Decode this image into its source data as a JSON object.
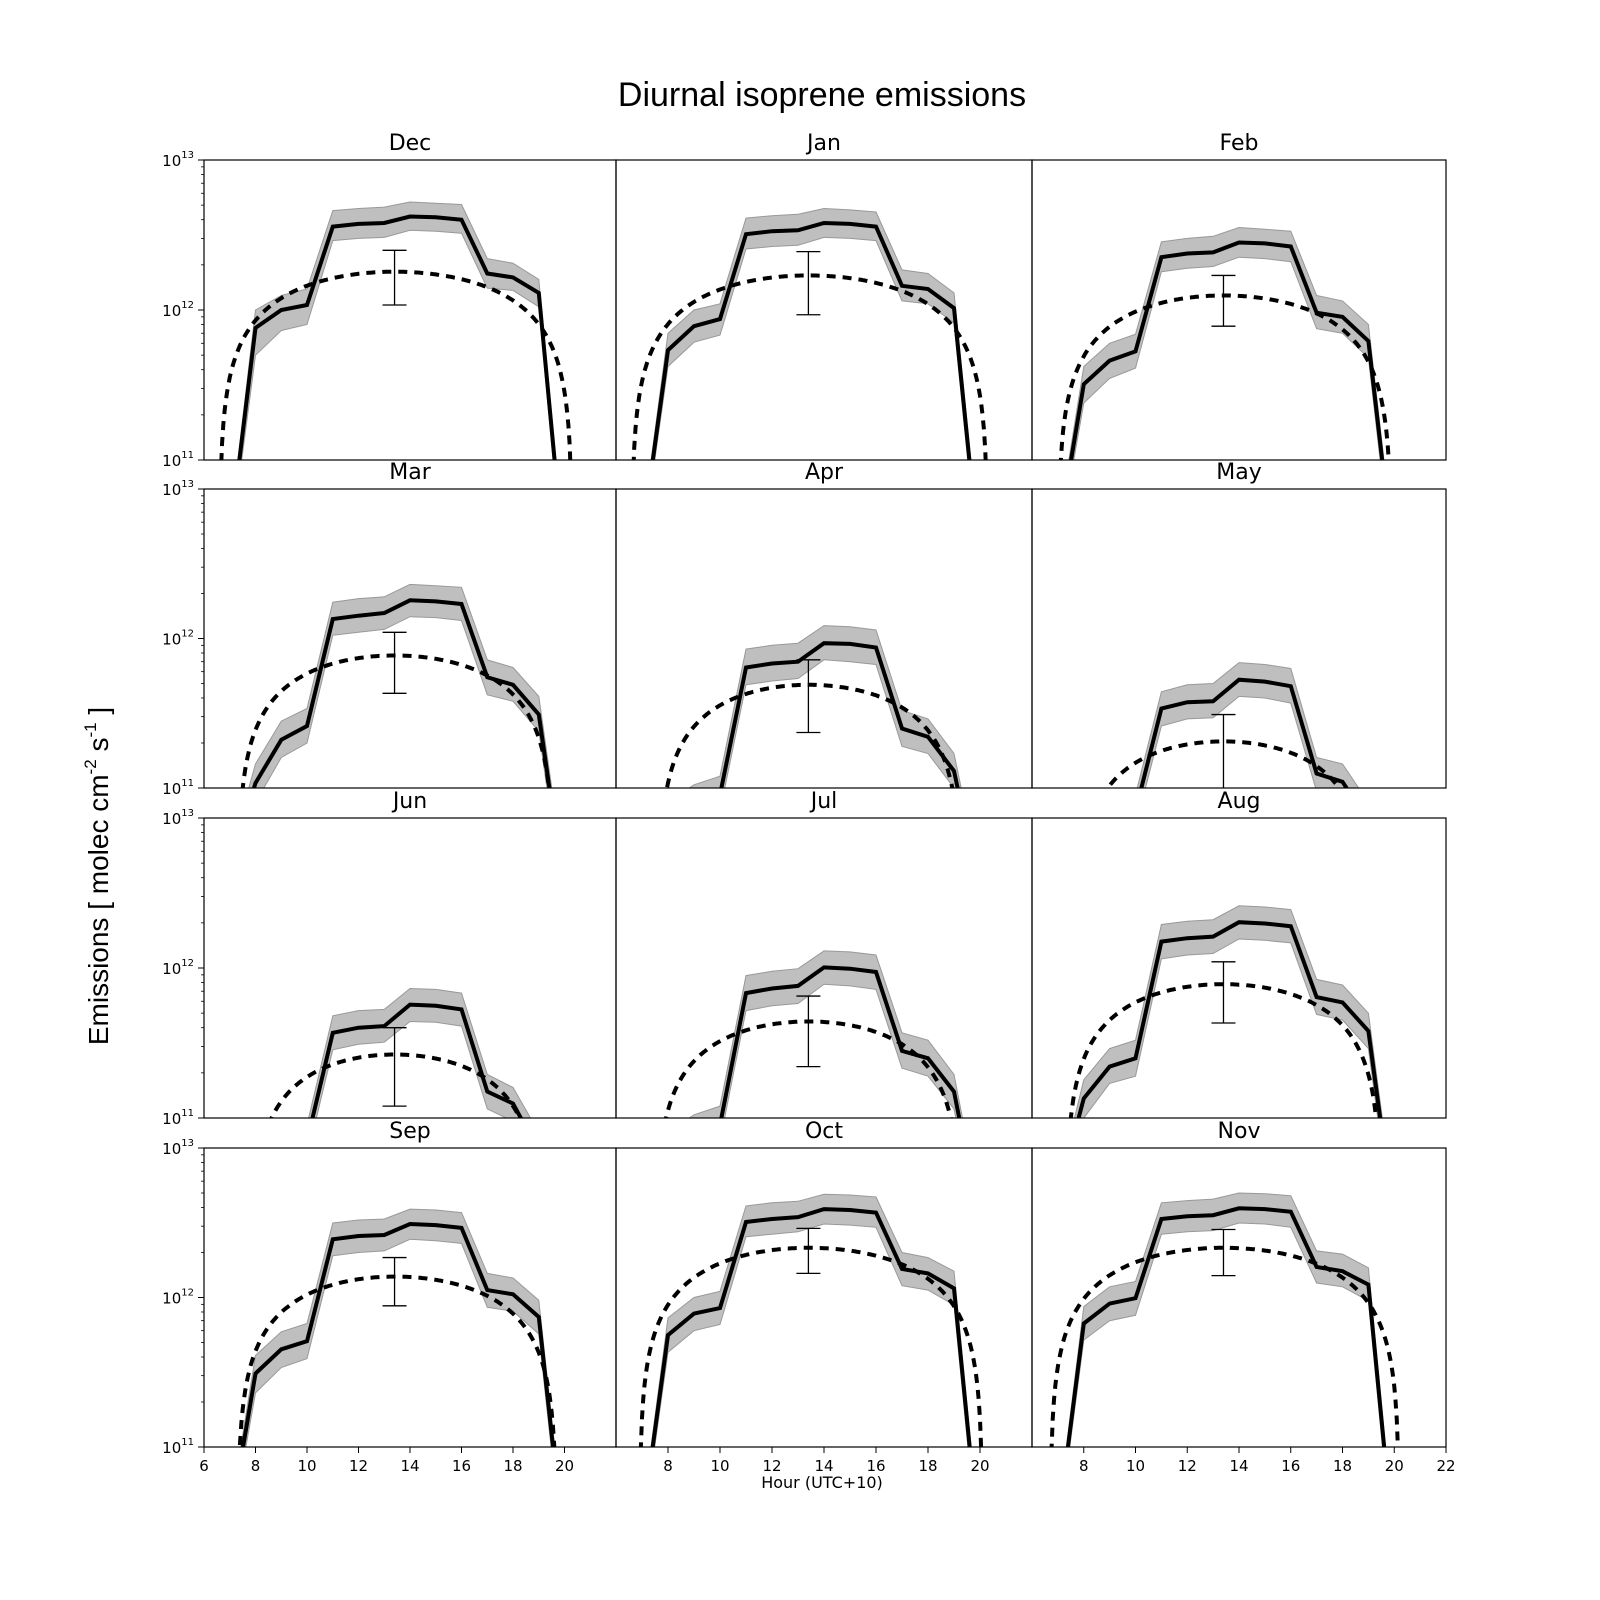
{
  "chart_data": {
    "type": "line",
    "title": "Diurnal isoprene emissions",
    "xlabel": "Hour (UTC+10)",
    "ylabel": {
      "text_parts": [
        "Emissions [ molec cm",
        "-2",
        " s",
        "-1",
        " ]"
      ]
    },
    "xlim": [
      6,
      22
    ],
    "ylim": [
      100000000000.0,
      10000000000000.0
    ],
    "yscale": "log",
    "x_ticks": [
      6,
      8,
      10,
      12,
      14,
      16,
      18,
      20,
      22
    ],
    "y_ticks": [
      {
        "base": "10",
        "exp": "11"
      },
      {
        "base": "10",
        "exp": "12"
      },
      {
        "base": "10",
        "exp": "13"
      }
    ],
    "grid": false,
    "legend": "none",
    "colors": {
      "model": "#000000",
      "band": "#bfbfbf",
      "band_edge": "#999999",
      "observed": "#000000"
    },
    "hours": [
      7,
      8,
      9,
      10,
      11,
      12,
      13,
      14,
      15,
      16,
      17,
      18,
      19,
      20
    ],
    "panels": [
      {
        "month": "Dec",
        "model": [
          30000000000.0,
          760000000000.0,
          1000000000000.0,
          1080000000000.0,
          3600000000000.0,
          3750000000000.0,
          3800000000000.0,
          4200000000000.0,
          4150000000000.0,
          4000000000000.0,
          1750000000000.0,
          1650000000000.0,
          1300000000000.0,
          20000000000.0
        ],
        "band_upper": [
          35000000000.0,
          1000000000000.0,
          1250000000000.0,
          1380000000000.0,
          4600000000000.0,
          4750000000000.0,
          4850000000000.0,
          5250000000000.0,
          5150000000000.0,
          5050000000000.0,
          2200000000000.0,
          2050000000000.0,
          1600000000000.0,
          25000000000.0
        ],
        "band_lower": [
          25000000000.0,
          500000000000.0,
          730000000000.0,
          800000000000.0,
          2900000000000.0,
          3000000000000.0,
          3050000000000.0,
          3400000000000.0,
          3350000000000.0,
          3250000000000.0,
          1400000000000.0,
          1350000000000.0,
          1050000000000.0,
          15000000000.0
        ],
        "curve": {
          "peak": 1800000000000.0,
          "center": 13.4,
          "sunrise": 6.6,
          "sunset": 20.3
        },
        "errorbar": {
          "x": 13.4,
          "low": 1080000000000.0,
          "high": 2500000000000.0
        }
      },
      {
        "month": "Jan",
        "model": [
          30000000000.0,
          540000000000.0,
          780000000000.0,
          870000000000.0,
          3200000000000.0,
          3350000000000.0,
          3400000000000.0,
          3800000000000.0,
          3750000000000.0,
          3600000000000.0,
          1450000000000.0,
          1380000000000.0,
          1030000000000.0,
          20000000000.0
        ],
        "band_upper": [
          35000000000.0,
          700000000000.0,
          1000000000000.0,
          1100000000000.0,
          4100000000000.0,
          4250000000000.0,
          4350000000000.0,
          4750000000000.0,
          4650000000000.0,
          4500000000000.0,
          1850000000000.0,
          1750000000000.0,
          1300000000000.0,
          25000000000.0
        ],
        "band_lower": [
          25000000000.0,
          420000000000.0,
          610000000000.0,
          680000000000.0,
          2550000000000.0,
          2650000000000.0,
          2700000000000.0,
          3050000000000.0,
          3000000000000.0,
          2900000000000.0,
          1150000000000.0,
          1100000000000.0,
          820000000000.0,
          15000000000.0
        ],
        "curve": {
          "peak": 1700000000000.0,
          "center": 13.4,
          "sunrise": 6.6,
          "sunset": 20.3
        },
        "errorbar": {
          "x": 13.4,
          "low": 930000000000.0,
          "high": 2450000000000.0
        }
      },
      {
        "month": "Feb",
        "model": [
          30000000000.0,
          320000000000.0,
          460000000000.0,
          530000000000.0,
          2250000000000.0,
          2380000000000.0,
          2420000000000.0,
          2820000000000.0,
          2780000000000.0,
          2650000000000.0,
          960000000000.0,
          900000000000.0,
          620000000000.0,
          20000000000.0
        ],
        "band_upper": [
          35000000000.0,
          420000000000.0,
          600000000000.0,
          690000000000.0,
          2850000000000.0,
          3000000000000.0,
          3100000000000.0,
          3550000000000.0,
          3450000000000.0,
          3350000000000.0,
          1250000000000.0,
          1150000000000.0,
          800000000000.0,
          25000000000.0
        ],
        "band_lower": [
          25000000000.0,
          240000000000.0,
          350000000000.0,
          410000000000.0,
          1800000000000.0,
          1900000000000.0,
          1950000000000.0,
          2250000000000.0,
          2200000000000.0,
          2100000000000.0,
          750000000000.0,
          700000000000.0,
          480000000000.0,
          15000000000.0
        ],
        "curve": {
          "peak": 1250000000000.0,
          "center": 13.4,
          "sunrise": 7.0,
          "sunset": 19.9
        },
        "errorbar": {
          "x": 13.4,
          "low": 780000000000.0,
          "high": 1700000000000.0
        }
      },
      {
        "month": "Mar",
        "model": [
          30000000000.0,
          108000000000.0,
          210000000000.0,
          260000000000.0,
          1350000000000.0,
          1420000000000.0,
          1480000000000.0,
          1800000000000.0,
          1770000000000.0,
          1700000000000.0,
          550000000000.0,
          490000000000.0,
          310000000000.0,
          20000000000.0
        ],
        "band_upper": [
          35000000000.0,
          145000000000.0,
          280000000000.0,
          340000000000.0,
          1750000000000.0,
          1850000000000.0,
          1900000000000.0,
          2300000000000.0,
          2250000000000.0,
          2200000000000.0,
          720000000000.0,
          640000000000.0,
          410000000000.0,
          25000000000.0
        ],
        "band_lower": [
          25000000000.0,
          80000000000.0,
          160000000000.0,
          200000000000.0,
          1050000000000.0,
          1100000000000.0,
          1150000000000.0,
          1400000000000.0,
          1380000000000.0,
          1320000000000.0,
          420000000000.0,
          380000000000.0,
          240000000000.0,
          15000000000.0
        ],
        "curve": {
          "peak": 770000000000.0,
          "center": 13.4,
          "sunrise": 7.3,
          "sunset": 19.6
        },
        "errorbar": {
          "x": 13.4,
          "low": 430000000000.0,
          "high": 1100000000000.0
        }
      },
      {
        "month": "Apr",
        "model": [
          30000000000.0,
          60000000000.0,
          80000000000.0,
          90000000000.0,
          640000000000.0,
          680000000000.0,
          700000000000.0,
          930000000000.0,
          920000000000.0,
          870000000000.0,
          250000000000.0,
          220000000000.0,
          130000000000.0,
          20000000000.0
        ],
        "band_upper": [
          35000000000.0,
          80000000000.0,
          105000000000.0,
          120000000000.0,
          850000000000.0,
          900000000000.0,
          930000000000.0,
          1220000000000.0,
          1200000000000.0,
          1140000000000.0,
          330000000000.0,
          290000000000.0,
          170000000000.0,
          25000000000.0
        ],
        "band_lower": [
          25000000000.0,
          45000000000.0,
          60000000000.0,
          70000000000.0,
          490000000000.0,
          520000000000.0,
          540000000000.0,
          720000000000.0,
          700000000000.0,
          670000000000.0,
          190000000000.0,
          170000000000.0,
          100000000000.0,
          15000000000.0
        ],
        "curve": {
          "peak": 490000000000.0,
          "center": 13.4,
          "sunrise": 7.6,
          "sunset": 19.3
        },
        "errorbar": {
          "x": 13.4,
          "low": 235000000000.0,
          "high": 720000000000.0
        }
      },
      {
        "month": "May",
        "model": [
          30000000000.0,
          40000000000.0,
          50000000000.0,
          70000000000.0,
          340000000000.0,
          375000000000.0,
          380000000000.0,
          530000000000.0,
          515000000000.0,
          480000000000.0,
          125000000000.0,
          110000000000.0,
          60000000000.0,
          20000000000.0
        ],
        "band_upper": [
          35000000000.0,
          50000000000.0,
          65000000000.0,
          90000000000.0,
          440000000000.0,
          490000000000.0,
          500000000000.0,
          690000000000.0,
          670000000000.0,
          630000000000.0,
          160000000000.0,
          145000000000.0,
          80000000000.0,
          25000000000.0
        ],
        "band_lower": [
          25000000000.0,
          30000000000.0,
          40000000000.0,
          55000000000.0,
          260000000000.0,
          290000000000.0,
          295000000000.0,
          410000000000.0,
          400000000000.0,
          370000000000.0,
          95000000000.0,
          85000000000.0,
          45000000000.0,
          15000000000.0
        ],
        "curve": {
          "peak": 205000000000.0,
          "center": 13.4,
          "sunrise": 7.7,
          "sunset": 19.1
        },
        "errorbar": {
          "x": 13.4,
          "low": 90000000000.0,
          "high": 310000000000.0
        }
      },
      {
        "month": "Jun",
        "model": [
          30000000000.0,
          40000000000.0,
          50000000000.0,
          70000000000.0,
          370000000000.0,
          400000000000.0,
          410000000000.0,
          570000000000.0,
          560000000000.0,
          530000000000.0,
          150000000000.0,
          125000000000.0,
          60000000000.0,
          20000000000.0
        ],
        "band_upper": [
          35000000000.0,
          50000000000.0,
          65000000000.0,
          90000000000.0,
          480000000000.0,
          520000000000.0,
          530000000000.0,
          730000000000.0,
          720000000000.0,
          680000000000.0,
          195000000000.0,
          160000000000.0,
          80000000000.0,
          25000000000.0
        ],
        "band_lower": [
          25000000000.0,
          30000000000.0,
          40000000000.0,
          55000000000.0,
          285000000000.0,
          310000000000.0,
          320000000000.0,
          440000000000.0,
          435000000000.0,
          410000000000.0,
          115000000000.0,
          95000000000.0,
          45000000000.0,
          15000000000.0
        ],
        "curve": {
          "peak": 265000000000.0,
          "center": 13.4,
          "sunrise": 7.8,
          "sunset": 19.1
        },
        "errorbar": {
          "x": 13.4,
          "low": 120000000000.0,
          "high": 400000000000.0
        }
      },
      {
        "month": "Jul",
        "model": [
          30000000000.0,
          60000000000.0,
          80000000000.0,
          90000000000.0,
          680000000000.0,
          730000000000.0,
          760000000000.0,
          1010000000000.0,
          990000000000.0,
          940000000000.0,
          280000000000.0,
          250000000000.0,
          150000000000.0,
          20000000000.0
        ],
        "band_upper": [
          35000000000.0,
          80000000000.0,
          105000000000.0,
          120000000000.0,
          890000000000.0,
          950000000000.0,
          990000000000.0,
          1300000000000.0,
          1280000000000.0,
          1220000000000.0,
          370000000000.0,
          330000000000.0,
          195000000000.0,
          25000000000.0
        ],
        "band_lower": [
          25000000000.0,
          45000000000.0,
          60000000000.0,
          70000000000.0,
          520000000000.0,
          560000000000.0,
          580000000000.0,
          780000000000.0,
          760000000000.0,
          720000000000.0,
          215000000000.0,
          190000000000.0,
          115000000000.0,
          15000000000.0
        ],
        "curve": {
          "peak": 440000000000.0,
          "center": 13.4,
          "sunrise": 7.5,
          "sunset": 19.3
        },
        "errorbar": {
          "x": 13.4,
          "low": 220000000000.0,
          "high": 650000000000.0
        }
      },
      {
        "month": "Aug",
        "model": [
          30000000000.0,
          135000000000.0,
          220000000000.0,
          250000000000.0,
          1500000000000.0,
          1580000000000.0,
          1620000000000.0,
          2020000000000.0,
          1980000000000.0,
          1900000000000.0,
          640000000000.0,
          590000000000.0,
          380000000000.0,
          20000000000.0
        ],
        "band_upper": [
          35000000000.0,
          180000000000.0,
          290000000000.0,
          330000000000.0,
          1950000000000.0,
          2050000000000.0,
          2100000000000.0,
          2600000000000.0,
          2550000000000.0,
          2450000000000.0,
          840000000000.0,
          770000000000.0,
          500000000000.0,
          25000000000.0
        ],
        "band_lower": [
          25000000000.0,
          100000000000.0,
          170000000000.0,
          190000000000.0,
          1150000000000.0,
          1220000000000.0,
          1250000000000.0,
          1560000000000.0,
          1530000000000.0,
          1470000000000.0,
          490000000000.0,
          450000000000.0,
          290000000000.0,
          15000000000.0
        ],
        "curve": {
          "peak": 780000000000.0,
          "center": 13.4,
          "sunrise": 7.3,
          "sunset": 19.5
        },
        "errorbar": {
          "x": 13.4,
          "low": 430000000000.0,
          "high": 1100000000000.0
        }
      },
      {
        "month": "Sep",
        "model": [
          30000000000.0,
          310000000000.0,
          450000000000.0,
          510000000000.0,
          2450000000000.0,
          2580000000000.0,
          2620000000000.0,
          3100000000000.0,
          3050000000000.0,
          2920000000000.0,
          1120000000000.0,
          1050000000000.0,
          740000000000.0,
          20000000000.0
        ],
        "band_upper": [
          35000000000.0,
          410000000000.0,
          590000000000.0,
          670000000000.0,
          3150000000000.0,
          3300000000000.0,
          3350000000000.0,
          3900000000000.0,
          3850000000000.0,
          3700000000000.0,
          1450000000000.0,
          1350000000000.0,
          960000000000.0,
          25000000000.0
        ],
        "band_lower": [
          25000000000.0,
          230000000000.0,
          340000000000.0,
          390000000000.0,
          1900000000000.0,
          2000000000000.0,
          2050000000000.0,
          2450000000000.0,
          2400000000000.0,
          2300000000000.0,
          860000000000.0,
          810000000000.0,
          570000000000.0,
          15000000000.0
        ],
        "curve": {
          "peak": 1380000000000.0,
          "center": 13.4,
          "sunrise": 7.3,
          "sunset": 19.7
        },
        "errorbar": {
          "x": 13.4,
          "low": 880000000000.0,
          "high": 1850000000000.0
        }
      },
      {
        "month": "Oct",
        "model": [
          30000000000.0,
          560000000000.0,
          780000000000.0,
          850000000000.0,
          3200000000000.0,
          3350000000000.0,
          3450000000000.0,
          3900000000000.0,
          3850000000000.0,
          3700000000000.0,
          1550000000000.0,
          1450000000000.0,
          1150000000000.0,
          20000000000.0
        ],
        "band_upper": [
          35000000000.0,
          730000000000.0,
          1000000000000.0,
          1100000000000.0,
          4100000000000.0,
          4300000000000.0,
          4400000000000.0,
          4900000000000.0,
          4850000000000.0,
          4700000000000.0,
          2000000000000.0,
          1850000000000.0,
          1500000000000.0,
          25000000000.0
        ],
        "band_lower": [
          25000000000.0,
          430000000000.0,
          600000000000.0,
          660000000000.0,
          2550000000000.0,
          2650000000000.0,
          2750000000000.0,
          3100000000000.0,
          3050000000000.0,
          2950000000000.0,
          1200000000000.0,
          1120000000000.0,
          890000000000.0,
          15000000000.0
        ],
        "curve": {
          "peak": 2150000000000.0,
          "center": 13.4,
          "sunrise": 6.9,
          "sunset": 20.1
        },
        "errorbar": {
          "x": 13.4,
          "low": 1450000000000.0,
          "high": 2900000000000.0
        }
      },
      {
        "month": "Nov",
        "model": [
          30000000000.0,
          670000000000.0,
          910000000000.0,
          990000000000.0,
          3350000000000.0,
          3500000000000.0,
          3550000000000.0,
          3950000000000.0,
          3900000000000.0,
          3750000000000.0,
          1600000000000.0,
          1500000000000.0,
          1220000000000.0,
          20000000000.0
        ],
        "band_upper": [
          35000000000.0,
          870000000000.0,
          1180000000000.0,
          1280000000000.0,
          4300000000000.0,
          4450000000000.0,
          4550000000000.0,
          5000000000000.0,
          4950000000000.0,
          4800000000000.0,
          2050000000000.0,
          1950000000000.0,
          1580000000000.0,
          25000000000.0
        ],
        "band_lower": [
          25000000000.0,
          520000000000.0,
          700000000000.0,
          760000000000.0,
          2650000000000.0,
          2750000000000.0,
          2800000000000.0,
          3150000000000.0,
          3100000000000.0,
          2950000000000.0,
          1250000000000.0,
          1180000000000.0,
          950000000000.0,
          15000000000.0
        ],
        "curve": {
          "peak": 2150000000000.0,
          "center": 13.4,
          "sunrise": 6.7,
          "sunset": 20.2
        },
        "errorbar": {
          "x": 13.4,
          "low": 1400000000000.0,
          "high": 2850000000000.0
        }
      }
    ]
  }
}
